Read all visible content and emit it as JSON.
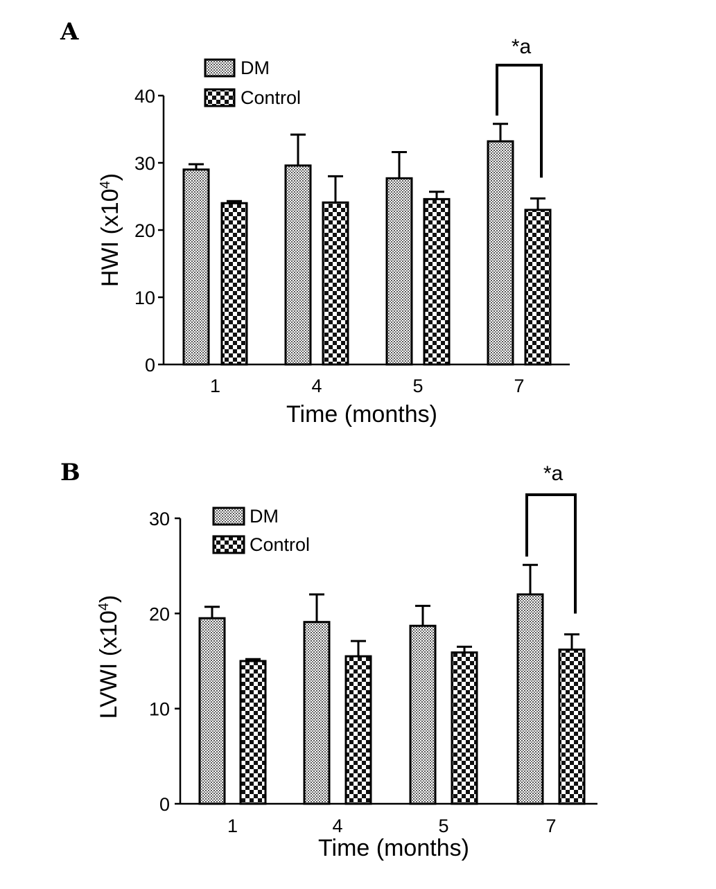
{
  "chart_data": [
    {
      "panel": "A",
      "type": "bar",
      "categories": [
        "1",
        "4",
        "5",
        "7"
      ],
      "xlabel": "Time (months)",
      "ylabel": "HWI (x10",
      "ylabel_sup": "4",
      "ylabel_close": ")",
      "ylim": [
        0,
        40
      ],
      "yticks": [
        0,
        10,
        20,
        30,
        40
      ],
      "legend_position": "top-left",
      "series": [
        {
          "name": "DM",
          "pattern": "fine-dots",
          "values": [
            29.0,
            29.6,
            27.7,
            33.2
          ],
          "errors": [
            0.8,
            4.6,
            3.9,
            2.6
          ]
        },
        {
          "name": "Control",
          "pattern": "checker",
          "values": [
            24.0,
            24.1,
            24.6,
            23.0
          ],
          "errors": [
            0.3,
            3.9,
            1.1,
            1.7
          ]
        }
      ],
      "annotation": {
        "category": "7",
        "text": "*a"
      }
    },
    {
      "panel": "B",
      "type": "bar",
      "categories": [
        "1",
        "4",
        "5",
        "7"
      ],
      "xlabel": "Time (months)",
      "ylabel": "LVWI (x10",
      "ylabel_sup": "4",
      "ylabel_close": ")",
      "ylim": [
        0,
        30
      ],
      "yticks": [
        0,
        10,
        20,
        30
      ],
      "legend_position": "top-left",
      "series": [
        {
          "name": "DM",
          "pattern": "fine-dots",
          "values": [
            19.5,
            19.1,
            18.7,
            22.0
          ],
          "errors": [
            1.2,
            2.9,
            2.1,
            3.1
          ]
        },
        {
          "name": "Control",
          "pattern": "checker",
          "values": [
            15.0,
            15.5,
            15.9,
            16.2
          ],
          "errors": [
            0.2,
            1.6,
            0.6,
            1.6
          ]
        }
      ],
      "annotation": {
        "category": "7",
        "text": "*a"
      }
    }
  ]
}
